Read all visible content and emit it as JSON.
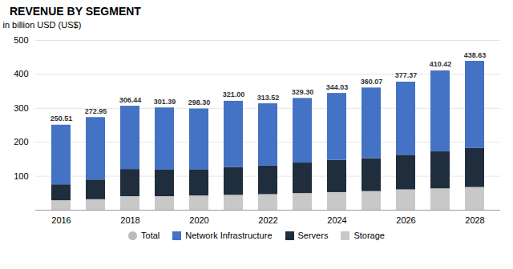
{
  "chart_data": {
    "type": "bar",
    "title": "REVENUE BY SEGMENT",
    "ylabel": "in billion USD (US$)",
    "stacked": true,
    "grid": true,
    "legend": "bottom",
    "categories": [
      "2016",
      null,
      "2018",
      null,
      "2020",
      null,
      "2022",
      null,
      "2024",
      null,
      "2026",
      null,
      "2028"
    ],
    "series": [
      {
        "name": "Storage",
        "color": "#C8C8C8",
        "values": [
          28,
          31,
          40,
          40,
          42,
          44,
          46,
          49,
          52,
          55,
          60,
          63,
          67
        ]
      },
      {
        "name": "Servers",
        "color": "#1F2D3D",
        "values": [
          47,
          58,
          80,
          78,
          76,
          82,
          84,
          90,
          95,
          97,
          102,
          109,
          115
        ]
      },
      {
        "name": "Network Infrastructure",
        "color": "#4472C4",
        "values": [
          175.51,
          183.95,
          186.44,
          183.39,
          180.3,
          195.0,
          183.52,
          190.3,
          197.03,
          208.07,
          215.37,
          238.42,
          256.63
        ]
      },
      {
        "name": "Total",
        "type": "text",
        "marker": "circle",
        "color": "#BBBBBB",
        "data_labels": true,
        "values": [
          250.51,
          272.95,
          306.44,
          301.39,
          298.3,
          321.0,
          313.52,
          329.3,
          344.03,
          360.07,
          377.37,
          410.42,
          438.63
        ],
        "value_labels": [
          "250.51",
          "272.95",
          "306.44",
          "301.39",
          "298.30",
          "321.00",
          "313.52",
          "329.30",
          "344.03",
          "360.07",
          "377.37",
          "410.42",
          "438.63"
        ]
      }
    ],
    "ylim": [
      0,
      500
    ],
    "yticks": [
      100,
      200,
      300,
      400,
      500
    ]
  }
}
